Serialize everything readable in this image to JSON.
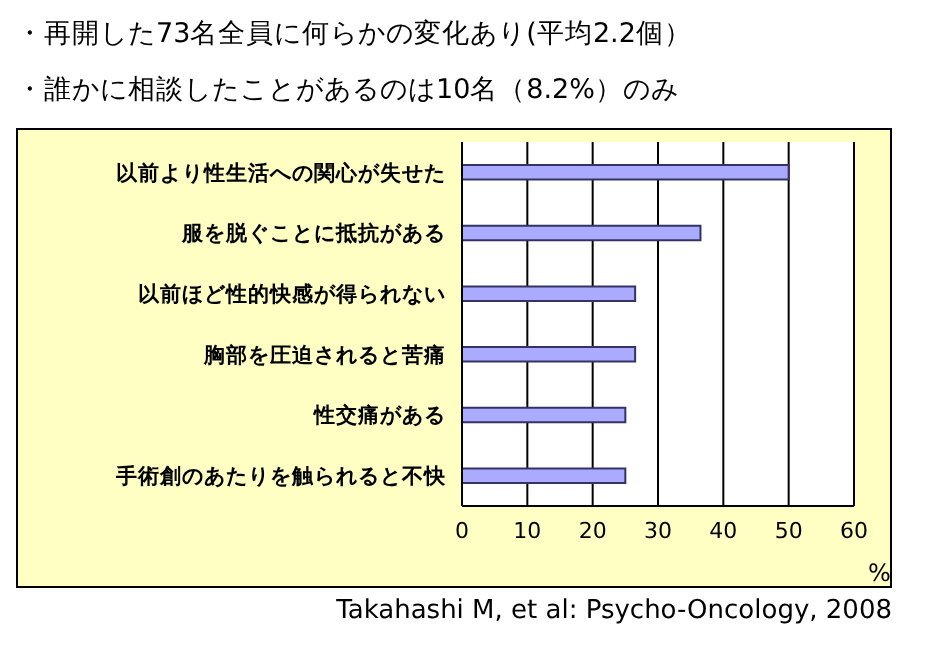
{
  "chart_data": {
    "type": "bar",
    "orientation": "horizontal",
    "title": "・再開した73名全員に何らかの変化あり(平均2.2個）",
    "subtitle": "・誰かに相談したことがあるのは10名（8.2%）のみ",
    "categories": [
      "以前より性生活への関心が失せた",
      "服を脱ぐことに抵抗がある",
      "以前ほど性的快感が得られない",
      "胸部を圧迫されると苦痛",
      "性交痛がある",
      "手術創のあたりを触られると不快"
    ],
    "values": [
      50,
      36.5,
      26.5,
      26.5,
      25,
      25
    ],
    "color": "#aaaaff",
    "xlabel": "%",
    "xlim": [
      0,
      60
    ],
    "xticks": [
      0,
      10,
      20,
      30,
      40,
      50,
      60
    ],
    "grid": "x",
    "annotations": [
      "Takahashi M, et al: Psycho-Oncology, 2008"
    ]
  }
}
